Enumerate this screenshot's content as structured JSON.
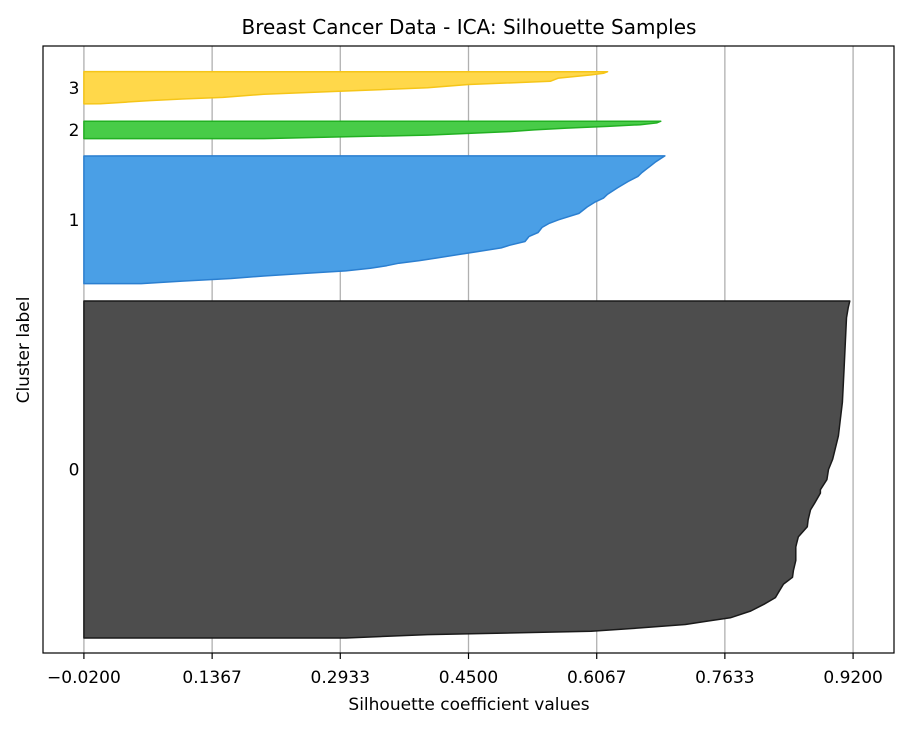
{
  "chart_data": {
    "type": "area",
    "title": "Breast Cancer Data - ICA: Silhouette Samples",
    "xlabel": "Silhouette coefficient values",
    "ylabel": "Cluster label",
    "xlim": [
      -0.07,
      0.97
    ],
    "x_ticks": [
      "−0.0200",
      "0.1367",
      "0.2933",
      "0.4500",
      "0.6067",
      "0.7633",
      "0.9200"
    ],
    "x_tick_values": [
      -0.02,
      0.1367,
      0.2933,
      0.45,
      0.6067,
      0.7633,
      0.92
    ],
    "grid": "vertical",
    "clusters": [
      {
        "label": "0",
        "color": "#4d4d4d",
        "edge": "#1a1a1a",
        "y_range": [
          0,
          388
        ],
        "profile": [
          [
            0,
            0.916
          ],
          [
            0.02,
            0.914
          ],
          [
            0.05,
            0.912
          ],
          [
            0.1,
            0.911
          ],
          [
            0.2,
            0.909
          ],
          [
            0.3,
            0.907
          ],
          [
            0.36,
            0.904
          ],
          [
            0.4,
            0.902
          ],
          [
            0.45,
            0.897
          ],
          [
            0.47,
            0.895
          ],
          [
            0.5,
            0.89
          ],
          [
            0.53,
            0.888
          ],
          [
            0.56,
            0.88
          ],
          [
            0.57,
            0.88
          ],
          [
            0.6,
            0.873
          ],
          [
            0.62,
            0.868
          ],
          [
            0.65,
            0.865
          ],
          [
            0.67,
            0.864
          ],
          [
            0.7,
            0.853
          ],
          [
            0.72,
            0.851
          ],
          [
            0.73,
            0.85
          ],
          [
            0.77,
            0.85
          ],
          [
            0.8,
            0.847
          ],
          [
            0.82,
            0.846
          ],
          [
            0.84,
            0.835
          ],
          [
            0.86,
            0.83
          ],
          [
            0.88,
            0.825
          ],
          [
            0.9,
            0.811
          ],
          [
            0.92,
            0.795
          ],
          [
            0.94,
            0.77
          ],
          [
            0.95,
            0.742
          ],
          [
            0.96,
            0.715
          ],
          [
            0.97,
            0.66
          ],
          [
            0.98,
            0.6
          ],
          [
            0.99,
            0.4
          ],
          [
            1.0,
            0.3
          ]
        ]
      },
      {
        "label": "1",
        "color": "#4a9fe6",
        "edge": "#2b7fd0",
        "y_range": [
          408,
          555
        ],
        "profile": [
          [
            0,
            0.69
          ],
          [
            0.02,
            0.685
          ],
          [
            0.05,
            0.678
          ],
          [
            0.08,
            0.672
          ],
          [
            0.1,
            0.668
          ],
          [
            0.13,
            0.662
          ],
          [
            0.16,
            0.657
          ],
          [
            0.2,
            0.645
          ],
          [
            0.25,
            0.632
          ],
          [
            0.3,
            0.62
          ],
          [
            0.33,
            0.615
          ],
          [
            0.36,
            0.605
          ],
          [
            0.4,
            0.595
          ],
          [
            0.45,
            0.585
          ],
          [
            0.5,
            0.56
          ],
          [
            0.53,
            0.548
          ],
          [
            0.56,
            0.54
          ],
          [
            0.6,
            0.535
          ],
          [
            0.63,
            0.524
          ],
          [
            0.67,
            0.519
          ],
          [
            0.7,
            0.5
          ],
          [
            0.72,
            0.49
          ],
          [
            0.75,
            0.46
          ],
          [
            0.77,
            0.44
          ],
          [
            0.8,
            0.41
          ],
          [
            0.82,
            0.39
          ],
          [
            0.84,
            0.365
          ],
          [
            0.86,
            0.35
          ],
          [
            0.88,
            0.33
          ],
          [
            0.9,
            0.3
          ],
          [
            0.92,
            0.25
          ],
          [
            0.94,
            0.2
          ],
          [
            0.96,
            0.16
          ],
          [
            0.98,
            0.1
          ],
          [
            1.0,
            0.05
          ]
        ]
      },
      {
        "label": "2",
        "color": "#48cc48",
        "edge": "#22b022",
        "y_range": [
          575,
          595
        ],
        "profile": [
          [
            0,
            0.685
          ],
          [
            0.1,
            0.68
          ],
          [
            0.2,
            0.66
          ],
          [
            0.3,
            0.62
          ],
          [
            0.4,
            0.57
          ],
          [
            0.5,
            0.53
          ],
          [
            0.6,
            0.5
          ],
          [
            0.7,
            0.45
          ],
          [
            0.8,
            0.4
          ],
          [
            0.9,
            0.3
          ],
          [
            1.0,
            0.2
          ]
        ]
      },
      {
        "label": "3",
        "color": "#ffd84a",
        "edge": "#f5c518",
        "y_range": [
          615,
          652
        ],
        "profile": [
          [
            0,
            0.62
          ],
          [
            0.05,
            0.615
          ],
          [
            0.1,
            0.6
          ],
          [
            0.15,
            0.58
          ],
          [
            0.2,
            0.56
          ],
          [
            0.3,
            0.55
          ],
          [
            0.4,
            0.45
          ],
          [
            0.5,
            0.4
          ],
          [
            0.6,
            0.3
          ],
          [
            0.7,
            0.2
          ],
          [
            0.8,
            0.15
          ],
          [
            0.85,
            0.1
          ],
          [
            0.9,
            0.06
          ],
          [
            0.95,
            0.03
          ],
          [
            1.0,
            0.0
          ]
        ]
      }
    ],
    "y_total": 662
  }
}
